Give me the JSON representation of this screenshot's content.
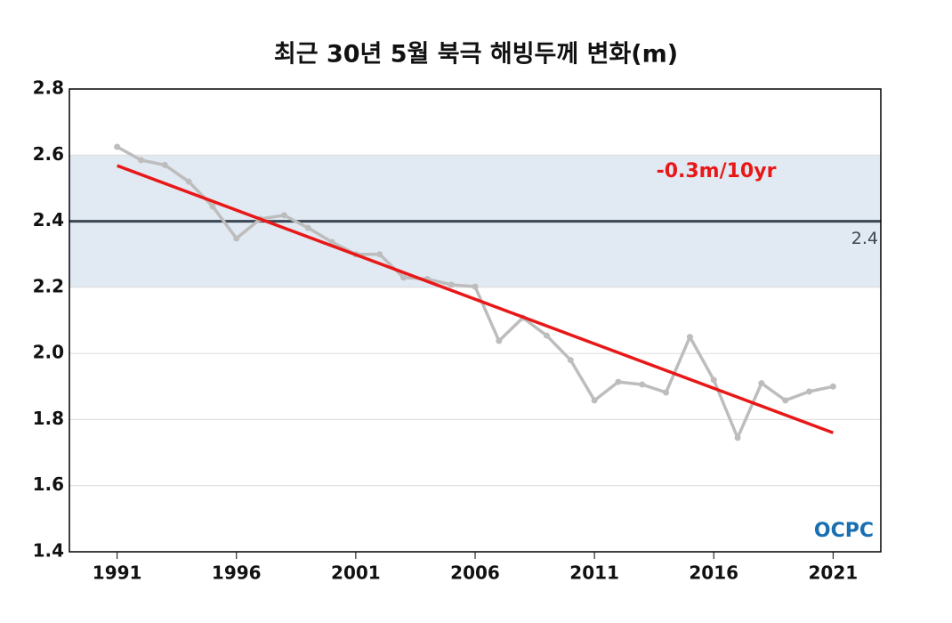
{
  "chart_data": {
    "type": "line",
    "title": "최근 30년 5월 북극 해빙두께 변화(m)",
    "x": [
      1991,
      1992,
      1993,
      1994,
      1995,
      1996,
      1997,
      1998,
      1999,
      2000,
      2001,
      2002,
      2003,
      2004,
      2005,
      2006,
      2007,
      2008,
      2009,
      2010,
      2011,
      2012,
      2013,
      2014,
      2015,
      2016,
      2017,
      2018,
      2019,
      2020,
      2021
    ],
    "values": [
      2.625,
      2.585,
      2.57,
      2.52,
      2.445,
      2.348,
      2.407,
      2.418,
      2.38,
      2.337,
      2.3,
      2.3,
      2.23,
      2.225,
      2.208,
      2.202,
      2.038,
      2.108,
      2.054,
      1.98,
      1.858,
      1.914,
      1.906,
      1.882,
      2.05,
      1.92,
      1.745,
      1.91,
      1.858,
      1.885,
      1.9
    ],
    "color": "#bdbdbd",
    "trend_line": {
      "x": [
        1991,
        2021
      ],
      "values": [
        2.568,
        1.76
      ],
      "color": "#e81818",
      "label": "-0.3m/10yr"
    },
    "reference_line": {
      "value": 2.4,
      "label": "2.4",
      "color": "#3a4652"
    },
    "band": {
      "range": [
        2.2,
        2.6
      ],
      "color": "#e1e9f2"
    },
    "xlim": [
      1989,
      2023
    ],
    "xticks": [
      1991,
      1996,
      2001,
      2006,
      2011,
      2016,
      2021
    ],
    "ylim": [
      1.4,
      2.8
    ],
    "yticks": [
      2.8,
      2.6,
      2.4,
      2.2,
      {
        "value": 2,
        "label": "2.0"
      },
      1.8,
      1.6,
      1.4
    ],
    "grid": true,
    "logo": "OCPC"
  }
}
